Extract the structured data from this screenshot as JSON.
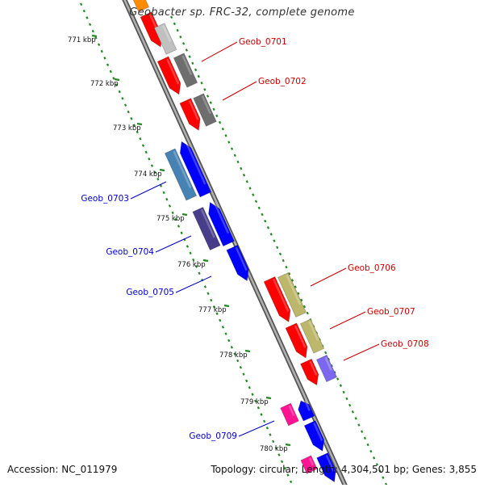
{
  "title": "Geobacter sp. FRC-32, complete genome",
  "accession": "Accession: NC_011979",
  "summary": "Topology: circular; Length: 4,304,501 bp; Genes: 3,855",
  "colors": {
    "forward_label": "#cc0000",
    "reverse_label": "#0000cc",
    "tick": "#228822",
    "backbone": "#999999"
  },
  "kbp_ticks": [
    {
      "label": "771 kbp"
    },
    {
      "label": "772 kbp"
    },
    {
      "label": "773 kbp"
    },
    {
      "label": "774 kbp"
    },
    {
      "label": "775 kbp"
    },
    {
      "label": "776 kbp"
    },
    {
      "label": "777 kbp"
    },
    {
      "label": "778 kbp"
    },
    {
      "label": "779 kbp"
    },
    {
      "label": "780 kbp"
    }
  ],
  "gene_labels": [
    {
      "text": "Geob_0701",
      "strand": "forward"
    },
    {
      "text": "Geob_0702",
      "strand": "forward"
    },
    {
      "text": "Geob_0703",
      "strand": "reverse"
    },
    {
      "text": "Geob_0704",
      "strand": "reverse"
    },
    {
      "text": "Geob_0705",
      "strand": "reverse"
    },
    {
      "text": "Geob_0706",
      "strand": "forward"
    },
    {
      "text": "Geob_0707",
      "strand": "forward"
    },
    {
      "text": "Geob_0708",
      "strand": "forward"
    },
    {
      "text": "Geob_0709",
      "strand": "reverse"
    }
  ]
}
